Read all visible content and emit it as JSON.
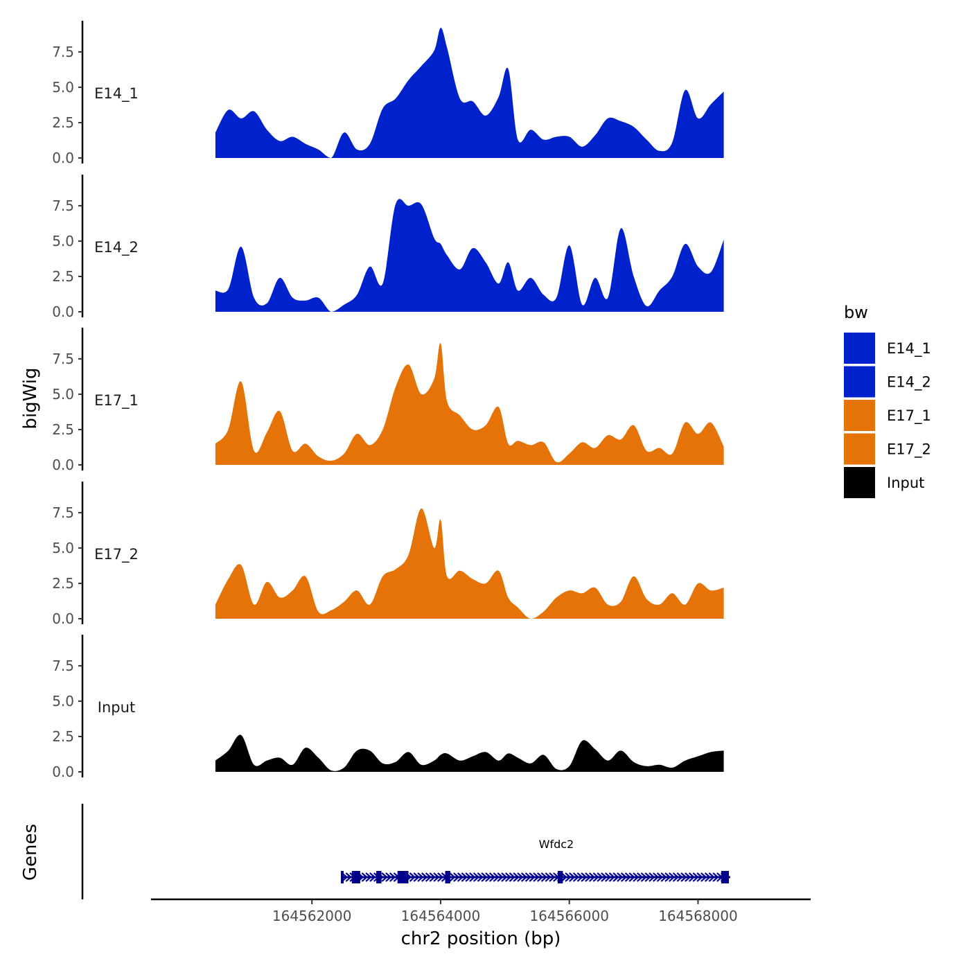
{
  "chart_data": {
    "type": "area",
    "ylabel": "bigWig",
    "xlabel": "chr2 position (bp)",
    "genes_label": "Genes",
    "x_range": [
      164559500,
      164569750
    ],
    "ylim": [
      0,
      9.7
    ],
    "y_ticks": [
      0.0,
      2.5,
      5.0,
      7.5
    ],
    "y_tick_labels": [
      "0.0",
      "2.5",
      "5.0",
      "7.5"
    ],
    "x_ticks": [
      164562000,
      164564000,
      164566000,
      164568000
    ],
    "x_tick_labels": [
      "164562000",
      "164564000",
      "164566000",
      "164568000"
    ],
    "legend": {
      "title": "bw",
      "entries": [
        {
          "label": "E14_1",
          "color": "#0022cc"
        },
        {
          "label": "E14_2",
          "color": "#0022cc"
        },
        {
          "label": "E17_1",
          "color": "#e57307"
        },
        {
          "label": "E17_2",
          "color": "#e57307"
        },
        {
          "label": "Input",
          "color": "#000000"
        }
      ]
    },
    "series": [
      {
        "name": "E14_1",
        "color": "#0022cc",
        "x": [
          164560500,
          164560700,
          164560900,
          164561100,
          164561300,
          164561500,
          164561700,
          164561900,
          164562100,
          164562300,
          164562500,
          164562700,
          164562900,
          164563100,
          164563300,
          164563500,
          164563700,
          164563900,
          164564000,
          164564100,
          164564300,
          164564500,
          164564700,
          164564900,
          164565050,
          164565200,
          164565400,
          164565600,
          164565800,
          164566000,
          164566200,
          164566400,
          164566600,
          164566800,
          164567000,
          164567200,
          164567400,
          164567600,
          164567800,
          164568000,
          164568200,
          164568400
        ],
        "values": [
          1.8,
          3.4,
          2.8,
          3.3,
          2.0,
          1.2,
          1.5,
          1.0,
          0.6,
          0.0,
          1.8,
          0.6,
          1.0,
          3.5,
          4.2,
          5.5,
          6.5,
          7.6,
          9.2,
          7.8,
          4.2,
          4.0,
          3.0,
          4.3,
          6.3,
          1.3,
          2.0,
          1.3,
          1.5,
          1.5,
          0.8,
          1.6,
          2.8,
          2.6,
          2.2,
          1.3,
          0.5,
          1.1,
          4.8,
          2.8,
          3.8,
          4.7
        ]
      },
      {
        "name": "E14_2",
        "color": "#0022cc",
        "x": [
          164560500,
          164560700,
          164560900,
          164561100,
          164561300,
          164561500,
          164561700,
          164561900,
          164562100,
          164562300,
          164562500,
          164562700,
          164562900,
          164563100,
          164563300,
          164563500,
          164563700,
          164563900,
          164564000,
          164564100,
          164564300,
          164564500,
          164564700,
          164564900,
          164565050,
          164565200,
          164565400,
          164565600,
          164565800,
          164566000,
          164566200,
          164566400,
          164566600,
          164566800,
          164567000,
          164567200,
          164567400,
          164567600,
          164567800,
          164568000,
          164568200,
          164568400
        ],
        "values": [
          1.5,
          1.6,
          4.6,
          1.0,
          0.6,
          2.4,
          1.0,
          0.8,
          1.0,
          0.0,
          0.5,
          1.2,
          3.2,
          2.0,
          7.6,
          7.5,
          7.6,
          5.2,
          4.8,
          4.0,
          3.0,
          4.5,
          3.5,
          2.0,
          3.5,
          1.5,
          2.4,
          1.2,
          1.0,
          4.7,
          0.5,
          2.4,
          1.0,
          5.9,
          2.5,
          0.4,
          1.5,
          2.5,
          4.8,
          3.2,
          2.8,
          5.1
        ]
      },
      {
        "name": "E17_1",
        "color": "#e57307",
        "x": [
          164560500,
          164560700,
          164560900,
          164561100,
          164561300,
          164561500,
          164561700,
          164561900,
          164562100,
          164562300,
          164562500,
          164562700,
          164562900,
          164563100,
          164563300,
          164563500,
          164563700,
          164563900,
          164564000,
          164564100,
          164564300,
          164564500,
          164564700,
          164564900,
          164565050,
          164565200,
          164565400,
          164565600,
          164565800,
          164566000,
          164566200,
          164566400,
          164566600,
          164566800,
          164567000,
          164567200,
          164567400,
          164567600,
          164567800,
          164568000,
          164568200,
          164568400
        ],
        "values": [
          1.5,
          2.5,
          5.9,
          1.0,
          2.3,
          3.8,
          1.0,
          1.5,
          0.6,
          0.3,
          0.8,
          2.2,
          1.4,
          2.5,
          5.5,
          7.1,
          5.0,
          6.1,
          8.6,
          4.5,
          3.5,
          2.5,
          2.8,
          4.1,
          1.5,
          1.7,
          1.4,
          1.6,
          0.2,
          0.8,
          1.6,
          1.2,
          2.1,
          1.8,
          2.8,
          1.0,
          1.2,
          0.8,
          3.0,
          2.2,
          3.0,
          1.3
        ]
      },
      {
        "name": "E17_2",
        "color": "#e57307",
        "x": [
          164560500,
          164560700,
          164560900,
          164561100,
          164561300,
          164561500,
          164561700,
          164561900,
          164562100,
          164562300,
          164562500,
          164562700,
          164562900,
          164563100,
          164563300,
          164563500,
          164563700,
          164563900,
          164564000,
          164564100,
          164564300,
          164564500,
          164564700,
          164564900,
          164565050,
          164565200,
          164565400,
          164565600,
          164565800,
          164566000,
          164566200,
          164566400,
          164566600,
          164566800,
          164567000,
          164567200,
          164567400,
          164567600,
          164567800,
          164568000,
          164568200,
          164568400
        ],
        "values": [
          1.0,
          2.8,
          3.8,
          1.0,
          2.6,
          1.5,
          2.0,
          3.0,
          0.5,
          0.6,
          1.2,
          2.0,
          1.0,
          3.0,
          3.5,
          4.5,
          7.8,
          5.0,
          7.0,
          3.0,
          3.4,
          2.8,
          2.5,
          3.4,
          1.5,
          0.8,
          0.0,
          0.5,
          1.5,
          2.0,
          1.8,
          2.2,
          1.0,
          1.2,
          3.0,
          1.4,
          1.0,
          1.8,
          1.0,
          2.5,
          2.0,
          2.2
        ]
      },
      {
        "name": "Input",
        "color": "#000000",
        "x": [
          164560500,
          164560700,
          164560900,
          164561100,
          164561300,
          164561500,
          164561700,
          164561900,
          164562100,
          164562300,
          164562500,
          164562700,
          164562900,
          164563100,
          164563300,
          164563500,
          164563700,
          164563900,
          164564000,
          164564100,
          164564300,
          164564500,
          164564700,
          164564900,
          164565050,
          164565200,
          164565400,
          164565600,
          164565800,
          164566000,
          164566200,
          164566400,
          164566600,
          164566800,
          164567000,
          164567200,
          164567400,
          164567600,
          164567800,
          164568000,
          164568200,
          164568400
        ],
        "values": [
          0.8,
          1.5,
          2.6,
          0.5,
          0.8,
          1.0,
          0.5,
          1.7,
          1.0,
          0.1,
          0.3,
          1.5,
          1.5,
          0.6,
          0.7,
          1.4,
          0.5,
          0.8,
          1.2,
          1.3,
          0.8,
          1.1,
          1.4,
          0.8,
          1.3,
          1.0,
          0.6,
          1.2,
          0.2,
          0.4,
          2.2,
          1.6,
          0.8,
          1.5,
          0.7,
          0.4,
          0.5,
          0.3,
          0.8,
          1.1,
          1.4,
          1.5
        ]
      }
    ],
    "gene_track": {
      "gene": "Wfdc2",
      "strand": "+",
      "start": 164562450,
      "end": 164568500,
      "exons": [
        [
          164562450,
          164562480
        ],
        [
          164562620,
          164562750
        ],
        [
          164563000,
          164563080
        ],
        [
          164563330,
          164563500
        ],
        [
          164564070,
          164564150
        ],
        [
          164565820,
          164565900
        ],
        [
          164568360,
          164568480
        ]
      ]
    }
  }
}
